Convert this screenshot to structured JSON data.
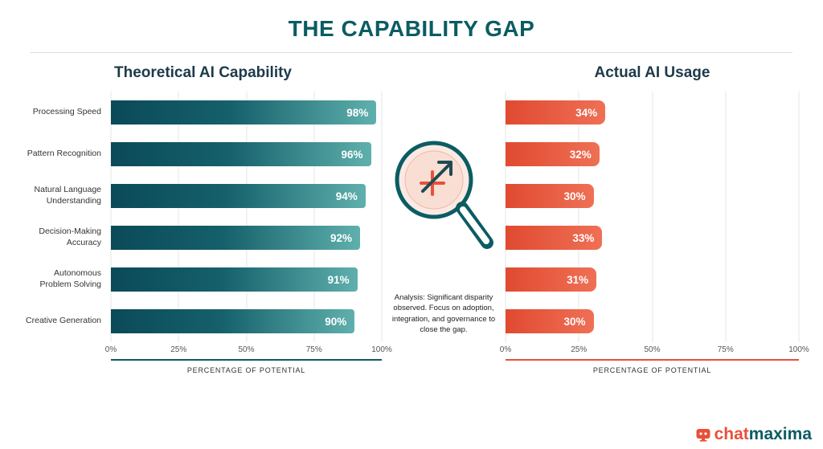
{
  "title": "THE CAPABILITY GAP",
  "analysis": "Analysis: Significant disparity observed. Focus on adoption, integration, and governance to close the gap.",
  "brand": {
    "part1": "chat",
    "part2": "maxima"
  },
  "colors": {
    "title_teal": "#0b5c63",
    "heading_dark": "#1d3a49",
    "bar_teal_start": "#0b4a58",
    "bar_teal_end": "#5fb0ad",
    "bar_coral_start": "#e04a31",
    "bar_coral_end": "#ef7055",
    "axis_teal": "#0b5c63",
    "axis_coral": "#e8503a",
    "logo_coral": "#e8503a",
    "logo_teal": "#0b5c63"
  },
  "chart_data": [
    {
      "type": "bar",
      "orientation": "horizontal",
      "title": "Theoretical AI Capability",
      "categories": [
        "Processing Speed",
        "Pattern Recognition",
        "Natural Language Understanding",
        "Decision-Making Accuracy",
        "Autonomous Problem Solving",
        "Creative Generation"
      ],
      "values": [
        98,
        96,
        94,
        92,
        91,
        90
      ],
      "value_suffix": "%",
      "xlabel": "PERCENTAGE OF POTENTIAL",
      "xlim": [
        0,
        100
      ],
      "ticks": [
        "0%",
        "25%",
        "50%",
        "75%",
        "100%"
      ],
      "grid": true,
      "bar_style": "teal-gradient"
    },
    {
      "type": "bar",
      "orientation": "horizontal",
      "title": "Actual AI Usage",
      "categories": [
        "Processing Speed",
        "Pattern Recognition",
        "Natural Language Understanding",
        "Decision-Making Accuracy",
        "Autonomous Problem Solving",
        "Creative Generation"
      ],
      "values": [
        34,
        32,
        30,
        33,
        31,
        30
      ],
      "value_suffix": "%",
      "xlabel": "PERCENTAGE OF POTENTIAL",
      "xlim": [
        0,
        100
      ],
      "ticks": [
        "0%",
        "25%",
        "50%",
        "75%",
        "100%"
      ],
      "grid": true,
      "bar_style": "coral-gradient"
    }
  ]
}
